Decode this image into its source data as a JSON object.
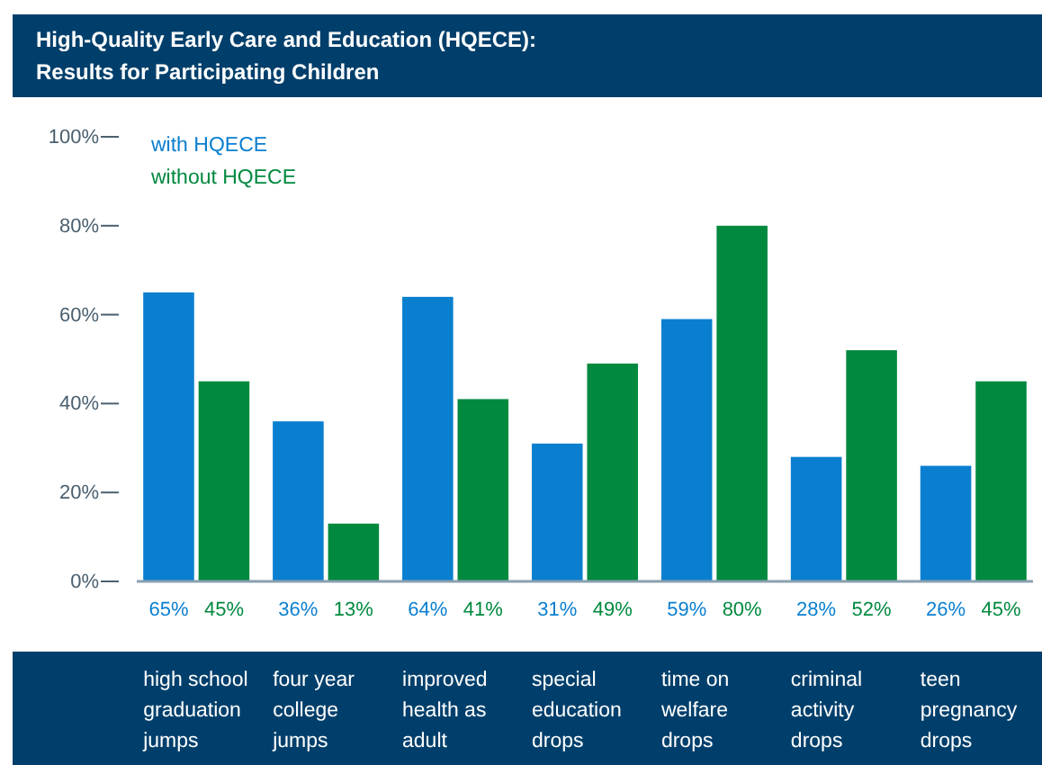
{
  "chart_data": {
    "type": "bar",
    "title": "High-Quality Early Care and Education (HQECE):\nResults for Participating Children",
    "categories": [
      "high school graduation jumps",
      "four year college jumps",
      "improved health as adult",
      "special education drops",
      "time on welfare drops",
      "criminal activity drops",
      "teen pregnancy drops"
    ],
    "series": [
      {
        "name": "with HQECE",
        "color": "#0a7fd0",
        "values": [
          65,
          36,
          64,
          31,
          59,
          28,
          26
        ],
        "value_labels": [
          "65%",
          "36%",
          "64%",
          "31%",
          "59%",
          "28%",
          "26%"
        ]
      },
      {
        "name": "without HQECE",
        "color": "#00893f",
        "values": [
          45,
          13,
          41,
          49,
          80,
          52,
          45
        ],
        "value_labels": [
          "45%",
          "13%",
          "41%",
          "49%",
          "80%",
          "52%",
          "45%"
        ]
      }
    ],
    "ylim": [
      0,
      100
    ],
    "yticks": [
      {
        "value": 0,
        "label": "0%"
      },
      {
        "value": 20,
        "label": "20%"
      },
      {
        "value": 40,
        "label": "40%"
      },
      {
        "value": 60,
        "label": "60%"
      },
      {
        "value": 80,
        "label": "80%"
      },
      {
        "value": 100,
        "label": "100%"
      }
    ],
    "grid": false,
    "legend": "top left"
  }
}
